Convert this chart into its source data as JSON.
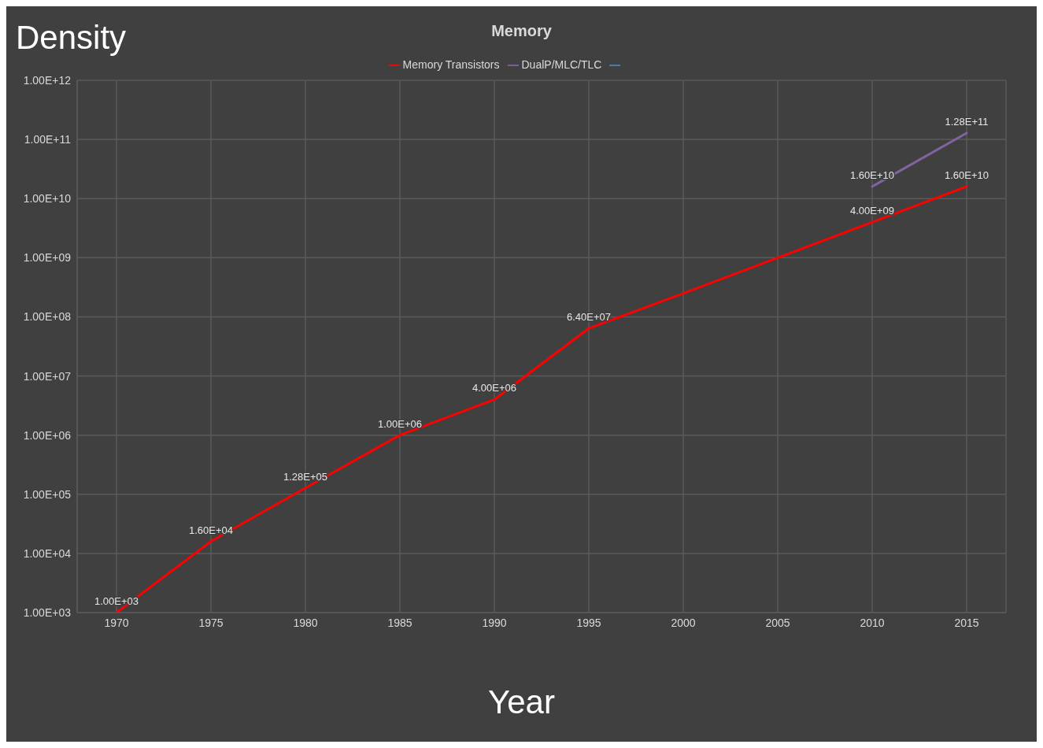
{
  "chart_data": {
    "type": "line",
    "title": "Memory",
    "xlabel": "Year",
    "ylabel": "Density",
    "categories": [
      "1970",
      "1975",
      "1980",
      "1985",
      "1990",
      "1995",
      "2000",
      "2005",
      "2010",
      "2015"
    ],
    "series": [
      {
        "name": "Memory Transistors",
        "color": "#ff0000",
        "values": [
          1000,
          16000,
          128000,
          1000000,
          4000000,
          64000000,
          250000000,
          1000000000,
          4000000000,
          16000000000
        ],
        "value_labels": [
          "1.00E+03",
          "1.60E+04",
          "1.28E+05",
          "1.00E+06",
          "4.00E+06",
          "6.40E+07",
          null,
          null,
          "4.00E+09",
          "1.60E+10"
        ]
      },
      {
        "name": "DualP/MLC/TLC",
        "color": "#8064a2",
        "values": [
          null,
          null,
          null,
          null,
          null,
          null,
          null,
          null,
          16000000000,
          128000000000
        ],
        "value_labels": [
          null,
          null,
          null,
          null,
          null,
          null,
          null,
          null,
          "1.60E+10",
          "1.28E+11"
        ]
      },
      {
        "color": "#4f81bd",
        "values": [
          null,
          null,
          null,
          null,
          null,
          null,
          null,
          null,
          null,
          null
        ]
      }
    ],
    "log": "y",
    "ylim": [
      1000,
      1000000000000
    ],
    "yticks": [
      {
        "value": 1000,
        "label": "1.00E+03"
      },
      {
        "value": 10000,
        "label": "1.00E+04"
      },
      {
        "value": 100000,
        "label": "1.00E+05"
      },
      {
        "value": 1000000,
        "label": "1.00E+06"
      },
      {
        "value": 10000000,
        "label": "1.00E+07"
      },
      {
        "value": 100000000,
        "label": "1.00E+08"
      },
      {
        "value": 1000000000,
        "label": "1.00E+09"
      },
      {
        "value": 10000000000,
        "label": "1.00E+10"
      },
      {
        "value": 100000000000,
        "label": "1.00E+11"
      },
      {
        "value": 1000000000000,
        "label": "1.00E+12"
      }
    ],
    "grid": true,
    "legend": "top",
    "marker": "none",
    "line_style": "solid"
  }
}
